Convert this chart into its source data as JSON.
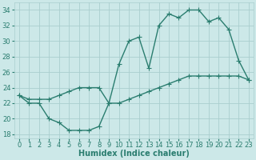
{
  "line1_x": [
    0,
    1,
    2,
    3,
    4,
    5,
    6,
    7,
    8,
    9,
    10,
    11,
    12,
    13,
    14,
    15,
    16,
    17,
    18,
    19,
    20,
    21,
    22,
    23
  ],
  "line1_y": [
    23,
    22,
    22,
    20,
    19.5,
    18.5,
    18.5,
    18.5,
    19,
    22,
    27,
    30,
    30.5,
    26.5,
    32,
    33.5,
    33,
    34,
    34,
    32.5,
    33,
    31.5,
    27.5,
    25
  ],
  "line2_x": [
    0,
    1,
    2,
    3,
    4,
    5,
    6,
    7,
    8,
    9,
    10,
    11,
    12,
    13,
    14,
    15,
    16,
    17,
    18,
    19,
    20,
    21,
    22,
    23
  ],
  "line2_y": [
    23,
    22.5,
    22.5,
    22.5,
    23,
    23.5,
    24,
    24,
    24,
    22,
    22,
    22.5,
    23,
    23.5,
    24,
    24.5,
    25,
    25.5,
    25.5,
    25.5,
    25.5,
    25.5,
    25.5,
    25
  ],
  "color": "#2a7d6f",
  "bg_color": "#cce8e8",
  "grid_color": "#aacece",
  "xlim": [
    -0.5,
    23.5
  ],
  "ylim": [
    17.5,
    35
  ],
  "yticks": [
    18,
    20,
    22,
    24,
    26,
    28,
    30,
    32,
    34
  ],
  "xticks": [
    0,
    1,
    2,
    3,
    4,
    5,
    6,
    7,
    8,
    9,
    10,
    11,
    12,
    13,
    14,
    15,
    16,
    17,
    18,
    19,
    20,
    21,
    22,
    23
  ],
  "xlabel": "Humidex (Indice chaleur)",
  "xlabel_fontsize": 7,
  "tick_fontsize": 6,
  "linewidth": 1.0,
  "markersize": 4,
  "markeredgewidth": 0.8
}
